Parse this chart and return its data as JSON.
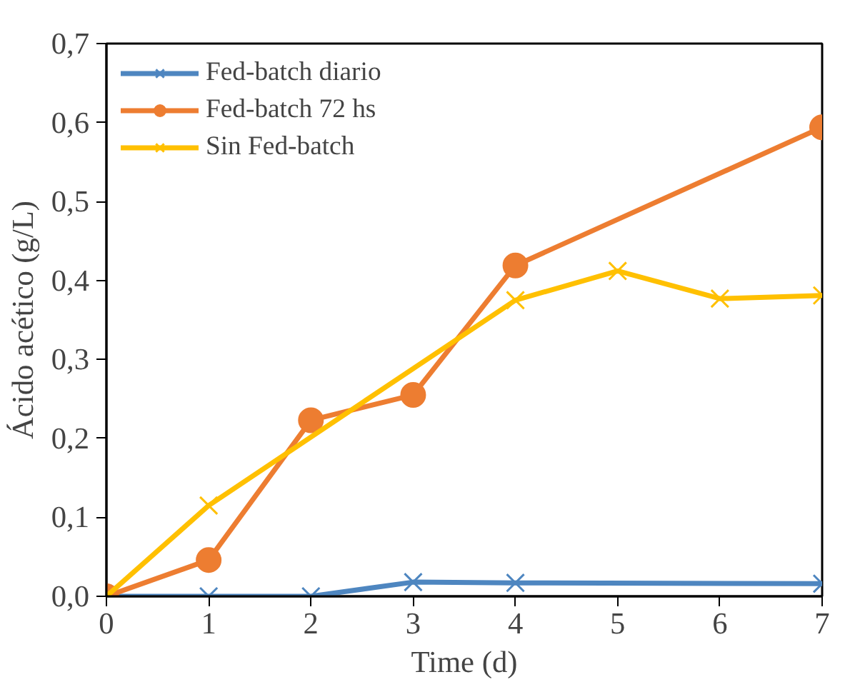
{
  "chart_data": {
    "type": "line",
    "xlabel": "Time (d)",
    "ylabel": "Ácido acético (g/L)",
    "xlim": [
      0,
      7
    ],
    "xticks": [
      0,
      1,
      2,
      3,
      4,
      5,
      6,
      7
    ],
    "ylim": [
      0,
      0.7
    ],
    "yticks": [
      {
        "value": 0,
        "label": "0,0"
      },
      {
        "value": 0.1,
        "label": "0,1"
      },
      {
        "value": 0.2,
        "label": "0,2"
      },
      {
        "value": 0.3,
        "label": "0,3"
      },
      {
        "value": 0.4,
        "label": "0,4"
      },
      {
        "value": 0.5,
        "label": "0,5"
      },
      {
        "value": 0.6,
        "label": "0,6"
      },
      {
        "value": 0.7,
        "label": "0,7"
      }
    ],
    "grid": false,
    "legend": "top left",
    "series": [
      {
        "name": "Fed-batch diario",
        "color": "#4e86c0",
        "marker": "cross",
        "x": [
          0,
          1,
          2,
          3,
          4,
          7
        ],
        "values": [
          0,
          0,
          0,
          0.018,
          0.017,
          0.016
        ]
      },
      {
        "name": "Fed-batch 72 hs",
        "color": "#ed7d31",
        "marker": "circle",
        "x": [
          0,
          1,
          2,
          3,
          4,
          7
        ],
        "values": [
          0,
          0.046,
          0.223,
          0.255,
          0.419,
          0.594
        ]
      },
      {
        "name": "Sin Fed-batch",
        "color": "#ffc000",
        "marker": "cross",
        "x": [
          0,
          1,
          4,
          5,
          6,
          7
        ],
        "values": [
          0,
          0.115,
          0.375,
          0.412,
          0.377,
          0.381
        ]
      }
    ]
  }
}
